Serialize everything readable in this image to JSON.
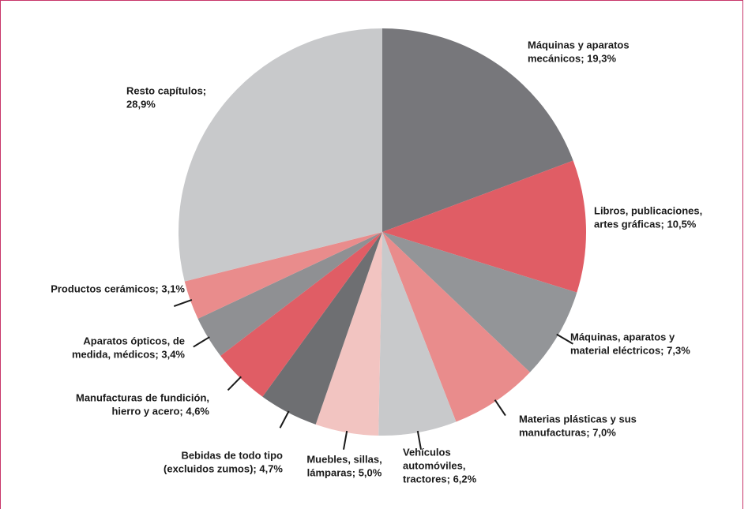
{
  "chart_data": {
    "type": "pie",
    "values": [
      19.3,
      10.5,
      7.3,
      7.0,
      6.2,
      5.0,
      4.7,
      4.6,
      3.4,
      3.1,
      28.9
    ],
    "value_labels": [
      [
        "Máquinas y aparatos",
        "mecánicos; 19,3%"
      ],
      [
        "Libros, publicaciones,",
        "artes gráficas; 10,5%"
      ],
      [
        "Máquinas, aparatos y",
        "material eléctricos; 7,3%"
      ],
      [
        "Materias plásticas y sus",
        "manufacturas; 7,0%"
      ],
      [
        "Vehículos",
        "automóviles,",
        "tractores; 6,2%"
      ],
      [
        "Muebles, sillas,",
        "lámparas; 5,0%"
      ],
      [
        "Bebidas de todo tipo",
        "(excluidos zumos); 4,7%"
      ],
      [
        "Manufacturas de fundición,",
        "hierro y acero; 4,6%"
      ],
      [
        "Aparatos ópticos, de",
        "medida, médicos; 3,4%"
      ],
      [
        "Productos cerámicos; 3,1%"
      ],
      [
        "Resto capítulos;",
        "28,9%"
      ]
    ],
    "colors": [
      "#77777b",
      "#e05d65",
      "#939598",
      "#e98c8c",
      "#c8c9cb",
      "#f2c4c1",
      "#6e6f72",
      "#e05d65",
      "#8f9093",
      "#e98c8c",
      "#c8c9cb"
    ]
  }
}
